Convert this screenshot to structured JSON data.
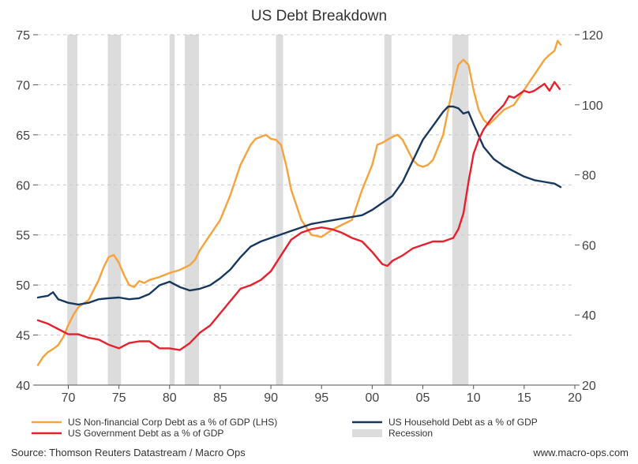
{
  "chart_data": {
    "type": "line",
    "title": "US Debt Breakdown",
    "xlabel": "",
    "ylabel_left": "",
    "ylabel_right": "",
    "x_range": [
      1967,
      2020
    ],
    "ylim_left": [
      40,
      75
    ],
    "ylim_right": [
      20,
      120
    ],
    "x_ticks": [
      {
        "value": 1970,
        "label": "70"
      },
      {
        "value": 1975,
        "label": "75"
      },
      {
        "value": 1980,
        "label": "80"
      },
      {
        "value": 1985,
        "label": "85"
      },
      {
        "value": 1990,
        "label": "90"
      },
      {
        "value": 1995,
        "label": "95"
      },
      {
        "value": 2000,
        "label": "00"
      },
      {
        "value": 2005,
        "label": "05"
      },
      {
        "value": 2010,
        "label": "10"
      },
      {
        "value": 2015,
        "label": "15"
      },
      {
        "value": 2020,
        "label": "20"
      }
    ],
    "y_ticks_left": [
      {
        "value": 40,
        "label": "40"
      },
      {
        "value": 45,
        "label": "45"
      },
      {
        "value": 50,
        "label": "50"
      },
      {
        "value": 55,
        "label": "55"
      },
      {
        "value": 60,
        "label": "60"
      },
      {
        "value": 65,
        "label": "65"
      },
      {
        "value": 70,
        "label": "70"
      },
      {
        "value": 75,
        "label": "75"
      }
    ],
    "y_ticks_right": [
      {
        "value": 20,
        "label": "20"
      },
      {
        "value": 40,
        "label": "40"
      },
      {
        "value": 60,
        "label": "60"
      },
      {
        "value": 80,
        "label": "80"
      },
      {
        "value": 100,
        "label": "100"
      },
      {
        "value": 120,
        "label": "120"
      }
    ],
    "grid": "horizontal dashed",
    "recessions": [
      {
        "start": 1969.9,
        "end": 1970.9
      },
      {
        "start": 1973.9,
        "end": 1975.2
      },
      {
        "start": 1980.0,
        "end": 1980.5
      },
      {
        "start": 1981.5,
        "end": 1982.9
      },
      {
        "start": 1990.5,
        "end": 1991.2
      },
      {
        "start": 2001.2,
        "end": 2001.9
      },
      {
        "start": 2007.9,
        "end": 2009.5
      }
    ],
    "series": [
      {
        "name": "US Non-financial Corp Debt as a % of GDP (LHS)",
        "axis": "left",
        "color": "#F7A23B",
        "x": [
          1967,
          1967.5,
          1968,
          1968.5,
          1969,
          1969.5,
          1970,
          1970.5,
          1971,
          1972,
          1973,
          1973.5,
          1974,
          1974.5,
          1975,
          1975.5,
          1976,
          1976.5,
          1977,
          1977.5,
          1978,
          1979,
          1980,
          1981,
          1982,
          1982.5,
          1983,
          1984,
          1985,
          1986,
          1987,
          1988,
          1988.5,
          1989,
          1989.5,
          1990,
          1990.5,
          1991,
          1991.5,
          1992,
          1993,
          1994,
          1995,
          1996,
          1997,
          1998,
          1999,
          2000,
          2000.5,
          2001,
          2001.5,
          2002,
          2002.5,
          2003,
          2003.5,
          2004,
          2004.5,
          2005,
          2005.5,
          2006,
          2007,
          2008,
          2008.5,
          2009,
          2009.5,
          2010,
          2010.5,
          2011,
          2011.5,
          2012,
          2013,
          2014,
          2015,
          2016,
          2017,
          2017.5,
          2018,
          2018.3,
          2018.6
        ],
        "values": [
          42.0,
          42.8,
          43.3,
          43.6,
          44.0,
          44.8,
          46.0,
          47.0,
          47.8,
          48.5,
          50.5,
          51.8,
          52.8,
          53.0,
          52.2,
          51.0,
          50.0,
          49.8,
          50.4,
          50.2,
          50.5,
          50.8,
          51.2,
          51.5,
          52.0,
          52.5,
          53.5,
          55.0,
          56.5,
          59.0,
          62.0,
          64.0,
          64.6,
          64.8,
          65.0,
          64.6,
          64.5,
          64.0,
          62.0,
          59.5,
          56.5,
          55.0,
          54.8,
          55.5,
          56.0,
          56.5,
          59.5,
          62.0,
          64.0,
          64.2,
          64.5,
          64.8,
          65.0,
          64.5,
          63.5,
          62.5,
          62.0,
          61.8,
          62.0,
          62.5,
          65.0,
          70.0,
          72.0,
          72.5,
          72.0,
          69.5,
          67.5,
          66.5,
          66.0,
          66.5,
          67.5,
          68.0,
          69.5,
          71.0,
          72.5,
          73.0,
          73.4,
          74.4,
          74.0
        ]
      },
      {
        "name": "US Household Debt as a % of GDP",
        "axis": "right",
        "color": "#17375E",
        "x": [
          1967,
          1968,
          1968.5,
          1969,
          1970,
          1971,
          1972,
          1973,
          1974,
          1975,
          1976,
          1977,
          1978,
          1979,
          1980,
          1981,
          1982,
          1983,
          1984,
          1985,
          1986,
          1987,
          1988,
          1989,
          1990,
          1991,
          1992,
          1993,
          1994,
          1995,
          1996,
          1997,
          1998,
          1999,
          2000,
          2001,
          2002,
          2003,
          2004,
          2005,
          2006,
          2007,
          2007.5,
          2008,
          2008.5,
          2009,
          2009.5,
          2010,
          2011,
          2012,
          2013,
          2014,
          2015,
          2016,
          2017,
          2018,
          2018.6
        ],
        "values": [
          45.0,
          45.5,
          46.5,
          44.5,
          43.5,
          43.0,
          43.5,
          44.5,
          44.8,
          45.0,
          44.5,
          44.8,
          46.0,
          48.5,
          49.5,
          48.0,
          47.0,
          47.5,
          48.5,
          50.5,
          53.0,
          56.5,
          59.5,
          61.0,
          62.0,
          63.0,
          64.0,
          65.0,
          66.0,
          66.5,
          67.0,
          67.5,
          68.0,
          68.5,
          70.0,
          72.0,
          74.0,
          78.0,
          84.0,
          90.0,
          94.0,
          98.0,
          99.5,
          99.5,
          99.0,
          97.5,
          98.0,
          94.5,
          88.0,
          84.5,
          82.5,
          81.0,
          79.5,
          78.5,
          78.0,
          77.5,
          76.5
        ]
      },
      {
        "name": "US Government Debt as a % of GDP",
        "axis": "right",
        "color": "#E8202E",
        "x": [
          1967,
          1968,
          1969,
          1970,
          1971,
          1972,
          1973,
          1974,
          1975,
          1976,
          1977,
          1978,
          1979,
          1980,
          1981,
          1982,
          1983,
          1984,
          1985,
          1986,
          1987,
          1988,
          1989,
          1990,
          1991,
          1992,
          1993,
          1994,
          1995,
          1996,
          1997,
          1998,
          1999,
          2000,
          2001,
          2001.5,
          2002,
          2003,
          2004,
          2005,
          2006,
          2007,
          2008,
          2008.5,
          2009,
          2009.5,
          2010,
          2010.5,
          2011,
          2012,
          2013,
          2013.5,
          2014,
          2015,
          2015.5,
          2016,
          2017,
          2017.5,
          2018,
          2018.5
        ],
        "values": [
          38.5,
          37.5,
          36.0,
          34.5,
          34.5,
          33.5,
          33.0,
          31.5,
          30.5,
          32.0,
          32.5,
          32.5,
          30.5,
          30.5,
          30.0,
          32.0,
          35.0,
          37.0,
          40.5,
          44.0,
          47.5,
          48.5,
          50.0,
          52.5,
          57.0,
          61.5,
          63.5,
          64.5,
          65.0,
          64.5,
          63.5,
          62.0,
          61.0,
          58.0,
          54.5,
          54.0,
          55.5,
          57.0,
          59.0,
          60.0,
          61.0,
          61.0,
          62.0,
          64.5,
          69.0,
          78.0,
          86.0,
          90.0,
          93.0,
          97.0,
          100.0,
          102.5,
          102.0,
          104.0,
          103.5,
          104.0,
          106.0,
          104.0,
          106.5,
          104.5
        ]
      }
    ],
    "legend": [
      {
        "label": "US Non-financial Corp Debt as a % of GDP (LHS)",
        "kind": "line",
        "color": "#F7A23B"
      },
      {
        "label": "US Household Debt as a % of GDP",
        "kind": "line",
        "color": "#17375E"
      },
      {
        "label": "US Government Debt as a % of GDP",
        "kind": "line",
        "color": "#E8202E"
      },
      {
        "label": "Recession",
        "kind": "area",
        "color": "#DCDCDC"
      }
    ],
    "legend_position": "bottom"
  },
  "footer": {
    "source": "Source: Thomson Reuters Datastream / Macro Ops",
    "website": "www.macro-ops.com"
  }
}
